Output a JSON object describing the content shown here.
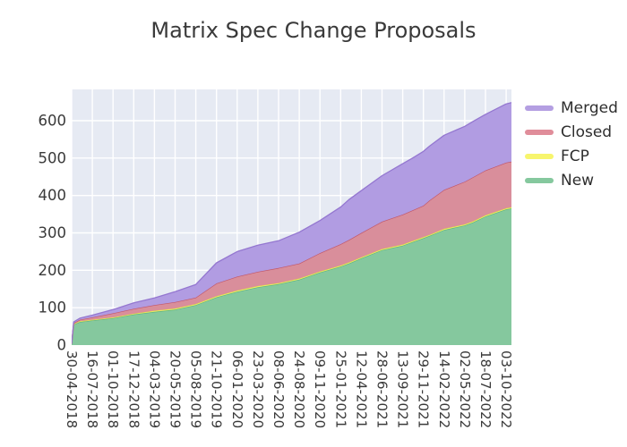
{
  "title": "Matrix Spec Change Proposals",
  "legend": {
    "items": [
      {
        "label": "Merged",
        "color": "#b49fe2"
      },
      {
        "label": "Closed",
        "color": "#e08d9a"
      },
      {
        "label": "FCP",
        "color": "#f7f56d"
      },
      {
        "label": "New",
        "color": "#85c89e"
      }
    ]
  },
  "chart_data": {
    "type": "area",
    "stacked": true,
    "title": "Matrix Spec Change Proposals",
    "xlabel": "",
    "ylabel": "",
    "plot_bg": "#e6eaf3",
    "grid": true,
    "grid_color": "#ffffff",
    "tick_color": "#3a3a3a",
    "legend_position": "right-outside",
    "y_ticks": [
      0,
      100,
      200,
      300,
      400,
      500,
      600
    ],
    "y_tick_labels": [
      "0",
      "100",
      "200",
      "300",
      "400",
      "500",
      "600"
    ],
    "ylim": [
      0,
      684
    ],
    "x_tick_labels": [
      "30-04-2018",
      "16-07-2018",
      "01-10-2018",
      "17-12-2018",
      "04-03-2019",
      "20-05-2019",
      "05-08-2019",
      "21-10-2019",
      "06-01-2020",
      "23-03-2020",
      "08-06-2020",
      "24-08-2020",
      "09-11-2020",
      "25-01-2021",
      "12-04-2021",
      "28-06-2021",
      "13-09-2021",
      "29-11-2021",
      "14-02-2022",
      "02-05-2022",
      "18-07-2022",
      "03-10-2022"
    ],
    "xlim": [
      0,
      21.26
    ],
    "x": [
      0,
      0.1,
      0.4,
      1,
      2,
      3,
      4,
      5,
      6,
      7,
      8,
      9,
      10,
      11,
      12,
      13,
      13.4,
      14,
      15,
      16,
      16.5,
      17,
      17.3,
      18,
      19,
      19.4,
      20,
      21,
      21.3
    ],
    "series": [
      {
        "name": "New",
        "fill": "#85c89e",
        "line": "#5cb383",
        "values": [
          3,
          55,
          62,
          66,
          72,
          82,
          89,
          95,
          107,
          128,
          143,
          155,
          163,
          175,
          194,
          210,
          218,
          232,
          254,
          266,
          276,
          286,
          292,
          308,
          320,
          328,
          344,
          363,
          366
        ]
      },
      {
        "name": "FCP",
        "fill": "#f5f36e",
        "line": "#dedb4b",
        "values": [
          0,
          1,
          2,
          2,
          2,
          2,
          3,
          3,
          3,
          3,
          3,
          3,
          3,
          3,
          3,
          3,
          3,
          3,
          3,
          3,
          3,
          3,
          3,
          3,
          3,
          3,
          3,
          3,
          3
        ]
      },
      {
        "name": "Closed",
        "fill": "#d98e9b",
        "line": "#c25668",
        "values": [
          0,
          3,
          4,
          6,
          11,
          13,
          15,
          17,
          17,
          34,
          37,
          38,
          40,
          40,
          49,
          57,
          60,
          65,
          73,
          80,
          82,
          84,
          92,
          104,
          114,
          118,
          120,
          122,
          122
        ]
      },
      {
        "name": "Merged",
        "fill": "#b19ce2",
        "line": "#9477d0",
        "values": [
          0,
          3,
          4,
          6,
          10,
          16,
          19,
          28,
          35,
          55,
          67,
          71,
          73,
          84,
          87,
          99,
          108,
          113,
          123,
          136,
          140,
          145,
          145,
          146,
          148,
          149,
          150,
          157,
          158
        ]
      }
    ]
  }
}
